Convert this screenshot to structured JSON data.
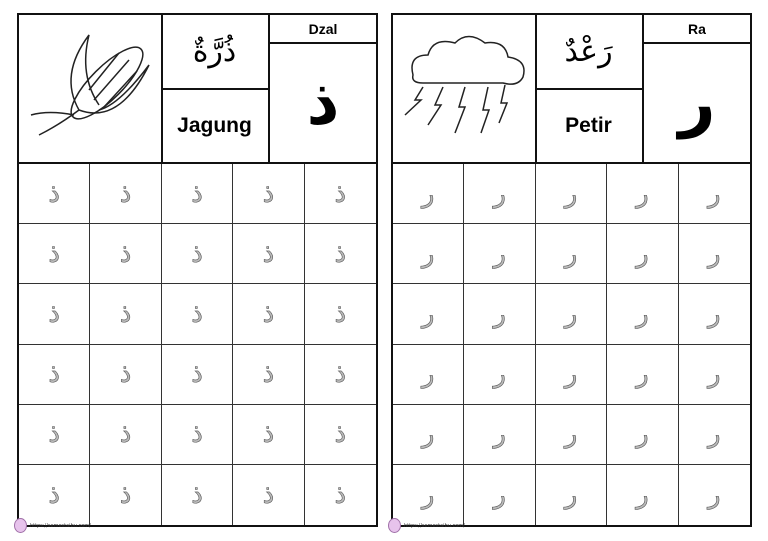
{
  "panels": [
    {
      "letter_name": "Dzal",
      "letter": "ذ",
      "arabic_word": "ذُرَّةٌ",
      "word": "Jagung",
      "picture": "corn",
      "trace_letter": "ذ",
      "footer_url": "https://semestaibu.com/"
    },
    {
      "letter_name": "Ra",
      "letter": "ر",
      "arabic_word": "رَعْدٌ",
      "word": "Petir",
      "picture": "storm-cloud",
      "trace_letter": "ر",
      "footer_url": "https://semestaibu.com/"
    }
  ]
}
